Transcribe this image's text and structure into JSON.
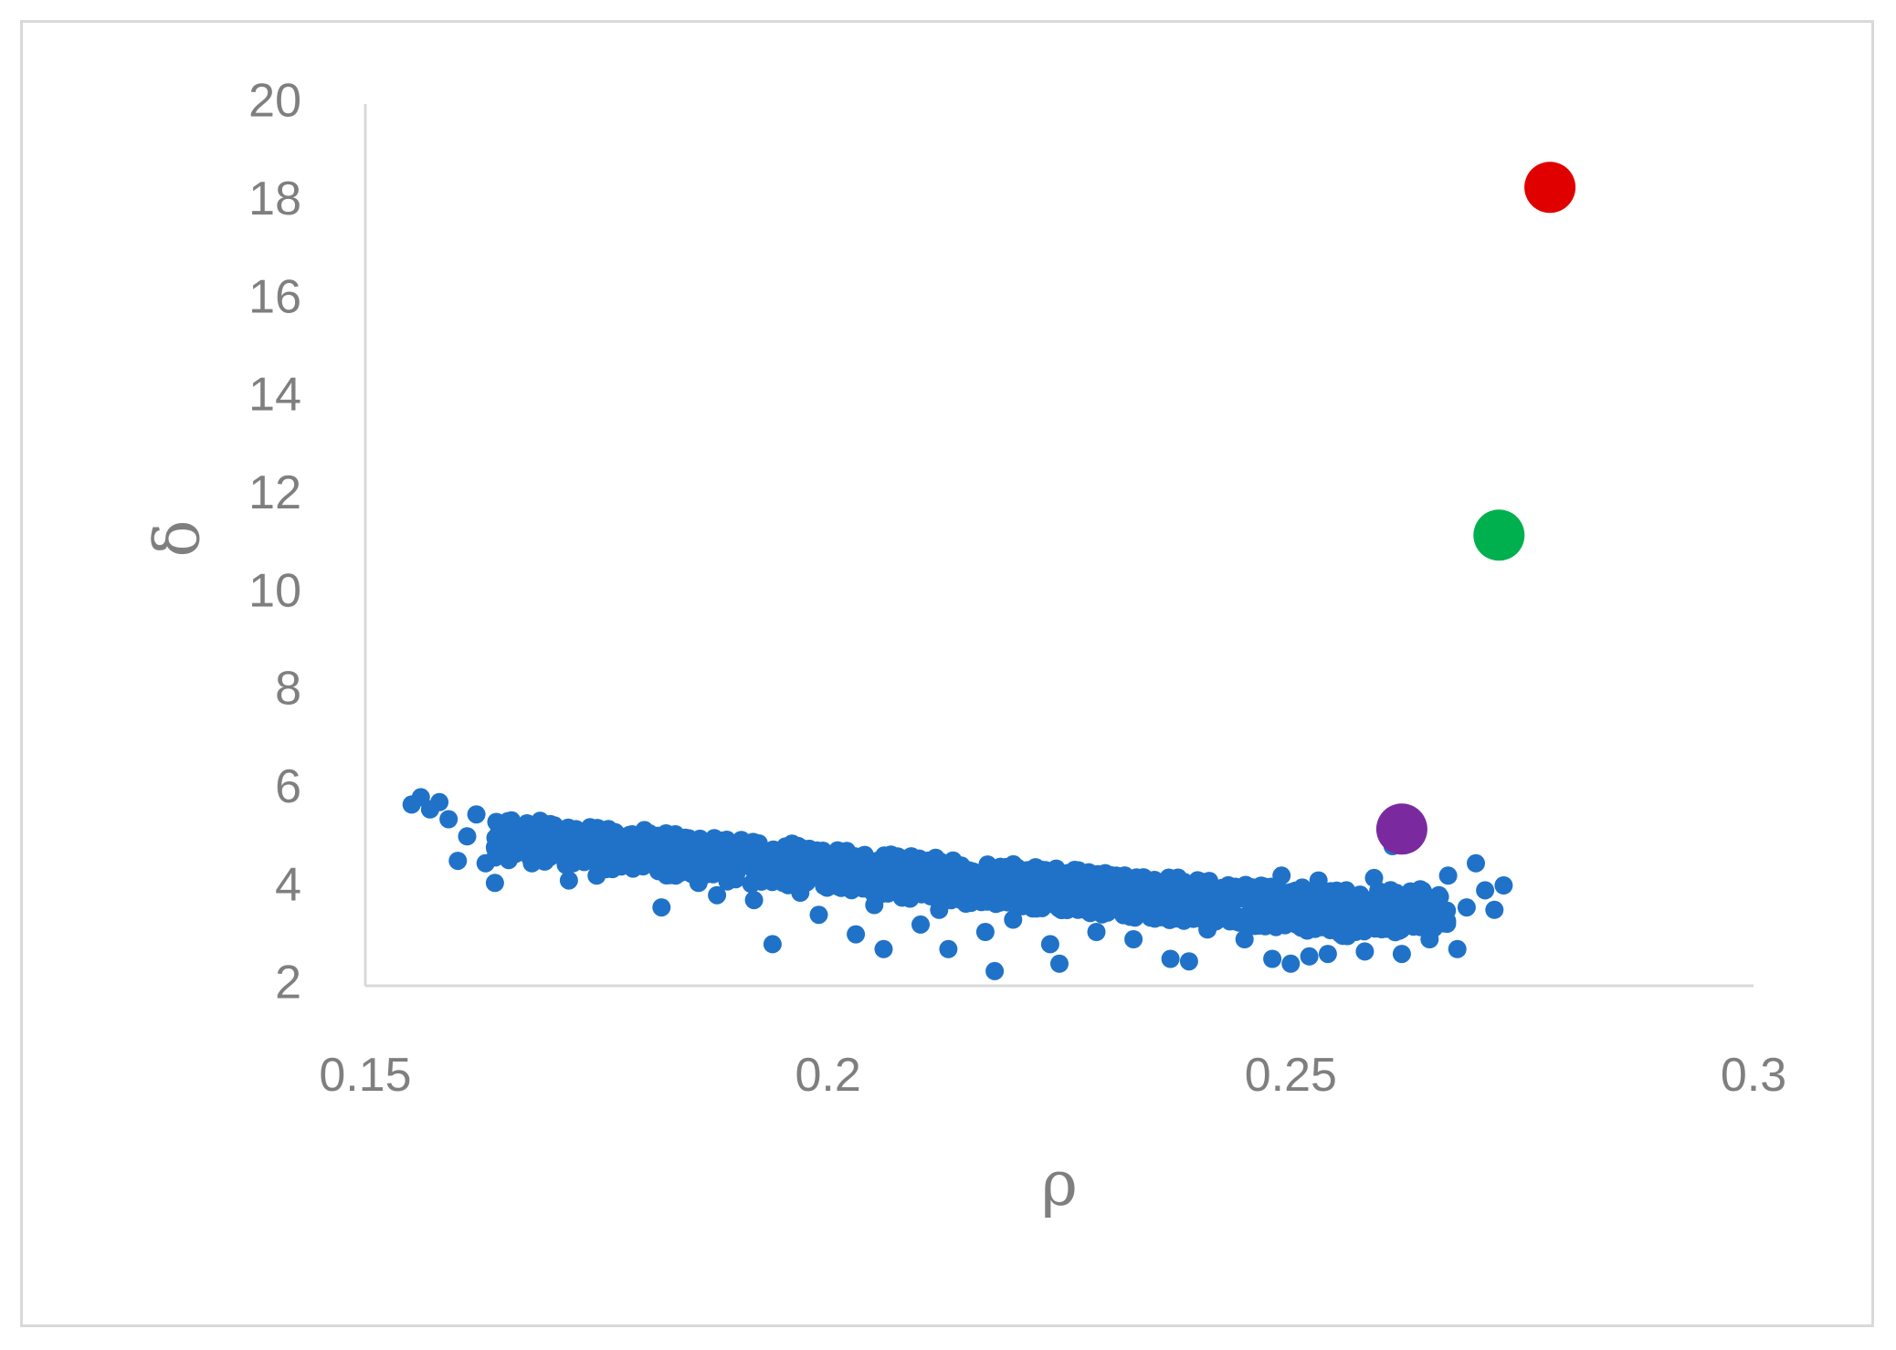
{
  "chart_data": {
    "type": "scatter",
    "title": "",
    "xlabel": "ρ",
    "ylabel": "δ",
    "xlim": [
      0.15,
      0.3
    ],
    "ylim": [
      2,
      20
    ],
    "xticks": [
      "0.15",
      "0.2",
      "0.25",
      "0.3"
    ],
    "yticks": [
      "2",
      "4",
      "6",
      "8",
      "10",
      "12",
      "14",
      "16",
      "18",
      "20"
    ],
    "grid": false,
    "legend": "none",
    "colors": {
      "cluster": "#1f72c8",
      "red": "#e00000",
      "green": "#00b04f",
      "purple": "#7a2a9e",
      "tick_text": "#7f7f7f",
      "axis": "#d9d9d9"
    },
    "series": [
      {
        "points": [
          [
            0.155,
            5.7
          ],
          [
            0.156,
            5.85
          ],
          [
            0.157,
            5.6
          ],
          [
            0.158,
            5.75
          ],
          [
            0.159,
            5.4
          ],
          [
            0.16,
            4.55
          ],
          [
            0.161,
            5.05
          ],
          [
            0.162,
            5.5
          ],
          [
            0.163,
            4.5
          ],
          [
            0.164,
            4.1
          ],
          [
            0.165,
            4.85
          ],
          [
            0.166,
            5.1
          ],
          [
            0.168,
            4.5
          ],
          [
            0.17,
            5.3
          ],
          [
            0.172,
            4.15
          ],
          [
            0.174,
            4.95
          ],
          [
            0.175,
            4.25
          ],
          [
            0.177,
            4.75
          ],
          [
            0.18,
            4.45
          ],
          [
            0.182,
            3.6
          ],
          [
            0.184,
            4.6
          ],
          [
            0.186,
            4.1
          ],
          [
            0.188,
            3.85
          ],
          [
            0.19,
            4.5
          ],
          [
            0.192,
            3.75
          ],
          [
            0.194,
            2.85
          ],
          [
            0.195,
            4.2
          ],
          [
            0.197,
            3.9
          ],
          [
            0.199,
            3.45
          ],
          [
            0.201,
            4.1
          ],
          [
            0.203,
            3.05
          ],
          [
            0.205,
            3.65
          ],
          [
            0.206,
            2.75
          ],
          [
            0.208,
            3.8
          ],
          [
            0.21,
            3.25
          ],
          [
            0.212,
            3.55
          ],
          [
            0.213,
            2.75
          ],
          [
            0.215,
            3.7
          ],
          [
            0.217,
            3.1
          ],
          [
            0.218,
            2.3
          ],
          [
            0.22,
            3.35
          ],
          [
            0.222,
            3.65
          ],
          [
            0.224,
            2.85
          ],
          [
            0.225,
            2.45
          ],
          [
            0.227,
            3.55
          ],
          [
            0.229,
            3.1
          ],
          [
            0.231,
            3.75
          ],
          [
            0.233,
            2.95
          ],
          [
            0.235,
            3.45
          ],
          [
            0.237,
            2.55
          ],
          [
            0.238,
            3.95
          ],
          [
            0.239,
            2.5
          ],
          [
            0.241,
            3.15
          ],
          [
            0.243,
            3.6
          ],
          [
            0.245,
            2.95
          ],
          [
            0.247,
            3.85
          ],
          [
            0.248,
            2.55
          ],
          [
            0.249,
            4.25
          ],
          [
            0.25,
            2.45
          ],
          [
            0.251,
            3.3
          ],
          [
            0.252,
            2.6
          ],
          [
            0.253,
            4.15
          ],
          [
            0.254,
            2.65
          ],
          [
            0.255,
            3.75
          ],
          [
            0.256,
            3.95
          ],
          [
            0.257,
            3.1
          ],
          [
            0.258,
            2.7
          ],
          [
            0.259,
            4.2
          ],
          [
            0.26,
            3.4
          ],
          [
            0.261,
            4.85
          ],
          [
            0.262,
            2.65
          ],
          [
            0.263,
            3.7
          ],
          [
            0.264,
            3.2
          ],
          [
            0.265,
            2.95
          ],
          [
            0.266,
            3.85
          ],
          [
            0.267,
            4.25
          ],
          [
            0.268,
            2.75
          ],
          [
            0.269,
            3.6
          ],
          [
            0.27,
            4.5
          ],
          [
            0.271,
            3.95
          ],
          [
            0.272,
            3.55
          ],
          [
            0.273,
            4.05
          ]
        ]
      },
      {
        "points": [
          [
            0.278,
            18.3
          ]
        ]
      },
      {
        "points": [
          [
            0.2725,
            11.2
          ]
        ]
      },
      {
        "points": [
          [
            0.262,
            5.2
          ]
        ]
      }
    ]
  }
}
